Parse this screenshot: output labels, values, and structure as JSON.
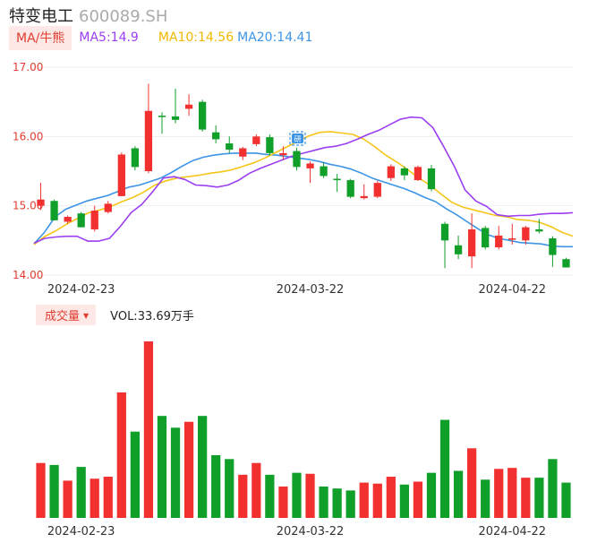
{
  "header": {
    "name": "特变电工",
    "code": "600089.SH"
  },
  "ma_bar": {
    "toggle_label": "MA/牛熊",
    "ma5": "MA5:14.9",
    "ma10": "MA10:14.56",
    "ma20": "MA20:14.41"
  },
  "volume_bar": {
    "toggle_label": "成交量",
    "vol_text": "VOL:33.69万手"
  },
  "colors": {
    "up": "#f23030",
    "down": "#10a02a",
    "ma5": "#9b3ff0",
    "ma10": "#f5c518",
    "ma20": "#3d94e6",
    "axis_label": "#e03c31"
  },
  "chart_data": [
    {
      "type": "candlestick",
      "y_ticks": [
        "17.00",
        "16.00",
        "15.00",
        "14.00"
      ],
      "ylim": [
        14.0,
        17.0
      ],
      "x_tick_labels": [
        {
          "index": 3,
          "label": "2024-02-23"
        },
        {
          "index": 20,
          "label": "2024-03-22"
        },
        {
          "index": 35,
          "label": "2024-04-22"
        }
      ],
      "candles": [
        {
          "o": 15.0,
          "c": 15.09,
          "h": 15.33,
          "l": 14.94
        },
        {
          "o": 15.07,
          "c": 14.79,
          "h": 15.09,
          "l": 14.79
        },
        {
          "o": 14.77,
          "c": 14.84,
          "h": 14.86,
          "l": 14.74
        },
        {
          "o": 14.89,
          "c": 14.69,
          "h": 14.91,
          "l": 14.69
        },
        {
          "o": 14.66,
          "c": 14.93,
          "h": 15.0,
          "l": 14.63
        },
        {
          "o": 14.91,
          "c": 15.03,
          "h": 15.07,
          "l": 14.89
        },
        {
          "o": 15.14,
          "c": 15.74,
          "h": 15.77,
          "l": 15.14
        },
        {
          "o": 15.83,
          "c": 15.56,
          "h": 15.86,
          "l": 15.51
        },
        {
          "o": 15.5,
          "c": 16.37,
          "h": 16.76,
          "l": 15.47
        },
        {
          "o": 16.3,
          "c": 16.29,
          "h": 16.35,
          "l": 16.04
        },
        {
          "o": 16.29,
          "c": 16.24,
          "h": 16.69,
          "l": 16.19
        },
        {
          "o": 16.4,
          "c": 16.46,
          "h": 16.61,
          "l": 16.3
        },
        {
          "o": 16.5,
          "c": 16.1,
          "h": 16.53,
          "l": 16.07
        },
        {
          "o": 16.06,
          "c": 15.96,
          "h": 16.16,
          "l": 15.9
        },
        {
          "o": 15.9,
          "c": 15.81,
          "h": 16.0,
          "l": 15.76
        },
        {
          "o": 15.71,
          "c": 15.83,
          "h": 15.85,
          "l": 15.66
        },
        {
          "o": 15.89,
          "c": 16.0,
          "h": 16.03,
          "l": 15.86
        },
        {
          "o": 15.99,
          "c": 15.76,
          "h": 16.03,
          "l": 15.73
        },
        {
          "o": 15.73,
          "c": 15.76,
          "h": 15.86,
          "l": 15.66
        },
        {
          "o": 15.79,
          "c": 15.56,
          "h": 15.84,
          "l": 15.51
        },
        {
          "o": 15.54,
          "c": 15.61,
          "h": 15.64,
          "l": 15.33
        },
        {
          "o": 15.57,
          "c": 15.43,
          "h": 15.63,
          "l": 15.4
        },
        {
          "o": 15.39,
          "c": 15.37,
          "h": 15.46,
          "l": 15.2
        },
        {
          "o": 15.37,
          "c": 15.13,
          "h": 15.39,
          "l": 15.11
        },
        {
          "o": 15.11,
          "c": 15.14,
          "h": 15.31,
          "l": 15.09
        },
        {
          "o": 15.13,
          "c": 15.33,
          "h": 15.36,
          "l": 15.11
        },
        {
          "o": 15.4,
          "c": 15.57,
          "h": 15.6,
          "l": 15.36
        },
        {
          "o": 15.54,
          "c": 15.44,
          "h": 15.57,
          "l": 15.37
        },
        {
          "o": 15.37,
          "c": 15.56,
          "h": 15.58,
          "l": 15.36
        },
        {
          "o": 15.54,
          "c": 15.24,
          "h": 15.59,
          "l": 15.21
        },
        {
          "o": 14.74,
          "c": 14.5,
          "h": 14.77,
          "l": 14.1
        },
        {
          "o": 14.43,
          "c": 14.3,
          "h": 14.57,
          "l": 14.23
        },
        {
          "o": 14.27,
          "c": 14.66,
          "h": 14.89,
          "l": 14.1
        },
        {
          "o": 14.68,
          "c": 14.4,
          "h": 14.71,
          "l": 14.37
        },
        {
          "o": 14.4,
          "c": 14.57,
          "h": 14.71,
          "l": 14.37
        },
        {
          "o": 14.51,
          "c": 14.53,
          "h": 14.74,
          "l": 14.44
        },
        {
          "o": 14.5,
          "c": 14.69,
          "h": 14.71,
          "l": 14.44
        },
        {
          "o": 14.66,
          "c": 14.63,
          "h": 14.81,
          "l": 14.6
        },
        {
          "o": 14.53,
          "c": 14.29,
          "h": 14.56,
          "l": 14.12
        },
        {
          "o": 14.23,
          "c": 14.11,
          "h": 14.25,
          "l": 14.11
        }
      ],
      "ma5": [
        14.46,
        14.53,
        14.55,
        14.56,
        14.56,
        14.49,
        14.49,
        14.53,
        14.7,
        14.9,
        15.02,
        15.2,
        15.4,
        15.42,
        15.38,
        15.3,
        15.29,
        15.27,
        15.3,
        15.37,
        15.47,
        15.54,
        15.6,
        15.66,
        15.72,
        15.76,
        15.8,
        15.84,
        15.86,
        15.9,
        15.96,
        16.03,
        16.09,
        16.17,
        16.25,
        16.28,
        16.27,
        16.13,
        15.86,
        15.57,
        15.23,
        15.07,
        14.99,
        14.87,
        14.85,
        14.86,
        14.86,
        14.88,
        14.89,
        14.89,
        14.9
      ],
      "ma10": [
        14.44,
        14.56,
        14.64,
        14.74,
        14.82,
        14.9,
        14.94,
        14.99,
        15.06,
        15.12,
        15.2,
        15.3,
        15.36,
        15.4,
        15.42,
        15.44,
        15.47,
        15.49,
        15.52,
        15.57,
        15.62,
        15.69,
        15.77,
        15.85,
        15.93,
        16.01,
        16.06,
        16.07,
        16.05,
        16.03,
        15.96,
        15.85,
        15.73,
        15.63,
        15.52,
        15.4,
        15.3,
        15.17,
        15.05,
        14.98,
        14.94,
        14.9,
        14.86,
        14.84,
        14.8,
        14.79,
        14.76,
        14.7,
        14.62,
        14.56
      ],
      "ma20": [
        14.45,
        14.62,
        14.84,
        14.95,
        15.01,
        15.07,
        15.11,
        15.15,
        15.21,
        15.27,
        15.3,
        15.35,
        15.4,
        15.48,
        15.57,
        15.65,
        15.7,
        15.73,
        15.75,
        15.76,
        15.76,
        15.76,
        15.74,
        15.73,
        15.71,
        15.69,
        15.67,
        15.64,
        15.6,
        15.57,
        15.53,
        15.47,
        15.4,
        15.35,
        15.3,
        15.25,
        15.19,
        15.12,
        15.06,
        14.96,
        14.87,
        14.77,
        14.67,
        14.58,
        14.53,
        14.5,
        14.47,
        14.46,
        14.45,
        14.42,
        14.41,
        14.41
      ]
    },
    {
      "type": "bar",
      "title": "VOL",
      "values": [
        56,
        54,
        38,
        52,
        40,
        42,
        128,
        88,
        180,
        104,
        92,
        98,
        104,
        64,
        60,
        44,
        56,
        44,
        32,
        46,
        45,
        32,
        30,
        28,
        36,
        35,
        42,
        34,
        37,
        46,
        100,
        48,
        71,
        39,
        50,
        51,
        41,
        41,
        60,
        36
      ]
    }
  ]
}
